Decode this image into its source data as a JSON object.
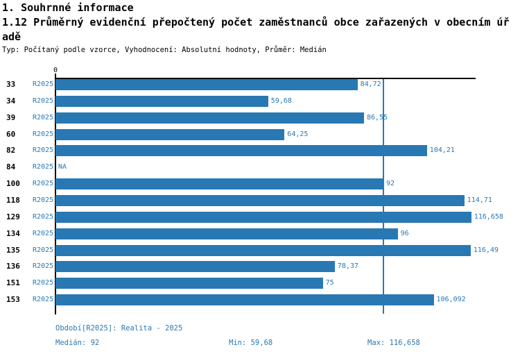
{
  "header": {
    "line1": "1. Souhrnné informace",
    "line2": "1.12 Průměrný evidenční přepočtený počet zaměstnanců obce zařazených v obecním úř",
    "line3": "adě",
    "meta": "Typ: Počítaný podle vzorce, Vyhodnocení: Absolutní hodnoty, Průměr: Medián"
  },
  "chart_data": {
    "type": "bar",
    "orientation": "horizontal",
    "axis_zero_label": "0",
    "series_name": "R2025",
    "categories": [
      "33",
      "34",
      "39",
      "60",
      "82",
      "84",
      "100",
      "118",
      "129",
      "134",
      "135",
      "136",
      "151",
      "153"
    ],
    "values": [
      84.72,
      59.68,
      86.55,
      64.25,
      104.21,
      null,
      92,
      114.71,
      116.658,
      96,
      116.49,
      78.37,
      75,
      106.092
    ],
    "value_labels": [
      "84,72",
      "59,68",
      "86,55",
      "64,25",
      "104,21",
      "NA",
      "92",
      "114,71",
      "116,658",
      "96",
      "116,49",
      "78,37",
      "75",
      "106,092"
    ],
    "na_label": "NA",
    "median_value": 92,
    "xlim": [
      0,
      117.9
    ],
    "bar_color": "#2878b4",
    "median_line_color": "#2878b4",
    "axis_color": "#000000",
    "legend_position": "none",
    "grid": false
  },
  "footer": {
    "period": "Období[R2025]: Realita - 2025",
    "median": "Medián: 92",
    "min": "Min: 59,68",
    "max": "Max: 116,658"
  }
}
